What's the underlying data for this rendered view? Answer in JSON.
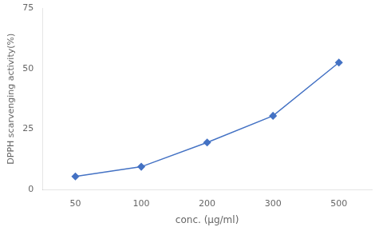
{
  "chart_data": {
    "type": "line",
    "categories": [
      "50",
      "100",
      "200",
      "300",
      "500"
    ],
    "values": [
      5.5,
      9.5,
      19.5,
      30.5,
      52.5
    ],
    "color": "#4472C4",
    "marker": "diamond",
    "xlabel": "conc. (μg/ml)",
    "ylabel": "DPPH scarvenging activity(%)",
    "ylim": [
      0,
      75
    ],
    "yticks": [
      0,
      25,
      50,
      75
    ],
    "grid": false
  }
}
